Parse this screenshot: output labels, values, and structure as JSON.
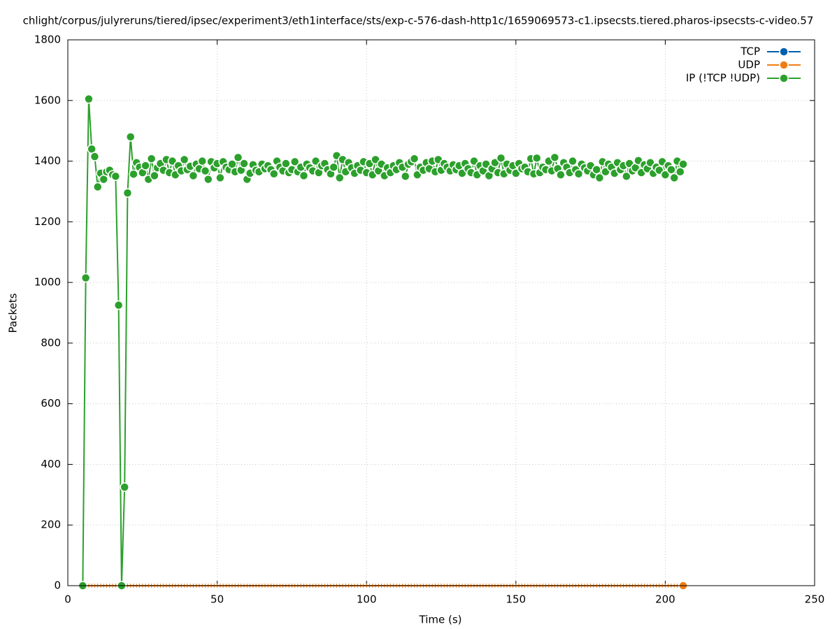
{
  "chart_data": {
    "type": "line",
    "title": "chlight/corpus/julyreruns/tiered/ipsec/experiment3/eth1interface/sts/exp-c-576-dash-http1c/1659069573-c1.ipsecsts.tiered.pharos-ipsecsts-c-video.57",
    "x_label": "Time (s)",
    "y_label": "Packets",
    "xlim": [
      0,
      250
    ],
    "xticks": [
      0,
      50,
      100,
      150,
      200,
      250
    ],
    "ylim": [
      0,
      1800
    ],
    "yticks": [
      0,
      200,
      400,
      600,
      800,
      1000,
      1200,
      1400,
      1600,
      1800
    ],
    "grid": true,
    "legend": "top-right",
    "x": [
      5,
      6,
      7,
      8,
      9,
      10,
      11,
      12,
      13,
      14,
      15,
      16,
      17,
      18,
      19,
      20,
      21,
      22,
      23,
      24,
      25,
      26,
      27,
      28,
      29,
      30,
      31,
      32,
      33,
      34,
      35,
      36,
      37,
      38,
      39,
      40,
      41,
      42,
      43,
      44,
      45,
      46,
      47,
      48,
      49,
      50,
      51,
      52,
      53,
      54,
      55,
      56,
      57,
      58,
      59,
      60,
      61,
      62,
      63,
      64,
      65,
      66,
      67,
      68,
      69,
      70,
      71,
      72,
      73,
      74,
      75,
      76,
      77,
      78,
      79,
      80,
      81,
      82,
      83,
      84,
      85,
      86,
      87,
      88,
      89,
      90,
      91,
      92,
      93,
      94,
      95,
      96,
      97,
      98,
      99,
      100,
      101,
      102,
      103,
      104,
      105,
      106,
      107,
      108,
      109,
      110,
      111,
      112,
      113,
      114,
      115,
      116,
      117,
      118,
      119,
      120,
      121,
      122,
      123,
      124,
      125,
      126,
      127,
      128,
      129,
      130,
      131,
      132,
      133,
      134,
      135,
      136,
      137,
      138,
      139,
      140,
      141,
      142,
      143,
      144,
      145,
      146,
      147,
      148,
      149,
      150,
      151,
      152,
      153,
      154,
      155,
      156,
      157,
      158,
      159,
      160,
      161,
      162,
      163,
      164,
      165,
      166,
      167,
      168,
      169,
      170,
      171,
      172,
      173,
      174,
      175,
      176,
      177,
      178,
      179,
      180,
      181,
      182,
      183,
      184,
      185,
      186,
      187,
      188,
      189,
      190,
      191,
      192,
      193,
      194,
      195,
      196,
      197,
      198,
      199,
      200,
      201,
      202,
      203,
      204,
      205,
      206
    ],
    "series": [
      {
        "name": "TCP",
        "color": "#0060ad"
      },
      {
        "name": "UDP",
        "color": "#f07d14",
        "values": [
          0,
          0,
          0,
          0,
          0,
          0,
          0,
          0,
          0,
          0,
          0,
          0,
          0,
          0,
          0,
          0,
          0,
          0,
          0,
          0,
          0,
          0,
          0,
          0,
          0,
          0,
          0,
          0,
          0,
          0,
          0,
          0,
          0,
          0,
          0,
          0,
          0,
          0,
          0,
          0,
          0,
          0,
          0,
          0,
          0,
          0,
          0,
          0,
          0,
          0,
          0,
          0,
          0,
          0,
          0,
          0,
          0,
          0,
          0,
          0,
          0,
          0,
          0,
          0,
          0,
          0,
          0,
          0,
          0,
          0,
          0,
          0,
          0,
          0,
          0,
          0,
          0,
          0,
          0,
          0,
          0,
          0,
          0,
          0,
          0,
          0,
          0,
          0,
          0,
          0,
          0,
          0,
          0,
          0,
          0,
          0,
          0,
          0,
          0,
          0,
          0,
          0,
          0,
          0,
          0,
          0,
          0,
          0,
          0,
          0,
          0,
          0,
          0,
          0,
          0,
          0,
          0,
          0,
          0,
          0,
          0,
          0,
          0,
          0,
          0,
          0,
          0,
          0,
          0,
          0,
          0,
          0,
          0,
          0,
          0,
          0,
          0,
          0,
          0,
          0,
          0,
          0,
          0,
          0,
          0,
          0,
          0,
          0,
          0,
          0,
          0,
          0,
          0,
          0,
          0,
          0,
          0,
          0,
          0,
          0,
          0,
          0,
          0,
          0,
          0,
          0,
          0,
          0,
          0,
          0,
          0,
          0,
          0,
          0,
          0,
          0,
          0,
          0,
          0,
          0,
          0,
          0,
          0,
          0,
          0,
          0,
          0,
          0,
          0,
          0,
          0,
          0,
          0,
          0,
          0,
          0,
          0,
          0,
          0,
          0,
          0,
          0
        ]
      },
      {
        "name": "IP (!TCP  !UDP)",
        "color": "#2ca02c",
        "values": [
          0,
          1015,
          1605,
          1440,
          1415,
          1315,
          1360,
          1340,
          1365,
          1370,
          1355,
          1350,
          925,
          0,
          325,
          1295,
          1480,
          1357,
          1395,
          1380,
          1362,
          1385,
          1340,
          1408,
          1352,
          1378,
          1392,
          1370,
          1405,
          1362,
          1400,
          1355,
          1385,
          1368,
          1405,
          1372,
          1383,
          1352,
          1390,
          1375,
          1400,
          1368,
          1340,
          1398,
          1378,
          1392,
          1345,
          1398,
          1380,
          1372,
          1390,
          1365,
          1412,
          1370,
          1392,
          1340,
          1360,
          1388,
          1370,
          1365,
          1390,
          1375,
          1385,
          1372,
          1358,
          1400,
          1380,
          1368,
          1392,
          1362,
          1372,
          1398,
          1365,
          1380,
          1352,
          1390,
          1378,
          1368,
          1400,
          1362,
          1385,
          1392,
          1372,
          1358,
          1380,
          1418,
          1345,
          1405,
          1365,
          1395,
          1378,
          1360,
          1385,
          1370,
          1398,
          1362,
          1392,
          1355,
          1405,
          1368,
          1390,
          1352,
          1378,
          1362,
          1385,
          1372,
          1395,
          1380,
          1350,
          1390,
          1398,
          1408,
          1355,
          1380,
          1370,
          1395,
          1375,
          1400,
          1365,
          1405,
          1370,
          1392,
          1380,
          1368,
          1388,
          1372,
          1385,
          1360,
          1392,
          1375,
          1362,
          1400,
          1355,
          1385,
          1368,
          1390,
          1352,
          1375,
          1395,
          1362,
          1410,
          1358,
          1390,
          1370,
          1385,
          1360,
          1392,
          1375,
          1380,
          1365,
          1408,
          1358,
          1410,
          1362,
          1380,
          1372,
          1400,
          1368,
          1412,
          1375,
          1355,
          1395,
          1380,
          1362,
          1400,
          1372,
          1358,
          1390,
          1378,
          1368,
          1385,
          1355,
          1372,
          1345,
          1398,
          1365,
          1390,
          1380,
          1360,
          1395,
          1372,
          1385,
          1350,
          1392,
          1368,
          1378,
          1402,
          1362,
          1388,
          1375,
          1395,
          1360,
          1380,
          1370,
          1398,
          1355,
          1385,
          1372,
          1345,
          1400,
          1365,
          1390
        ]
      }
    ]
  }
}
